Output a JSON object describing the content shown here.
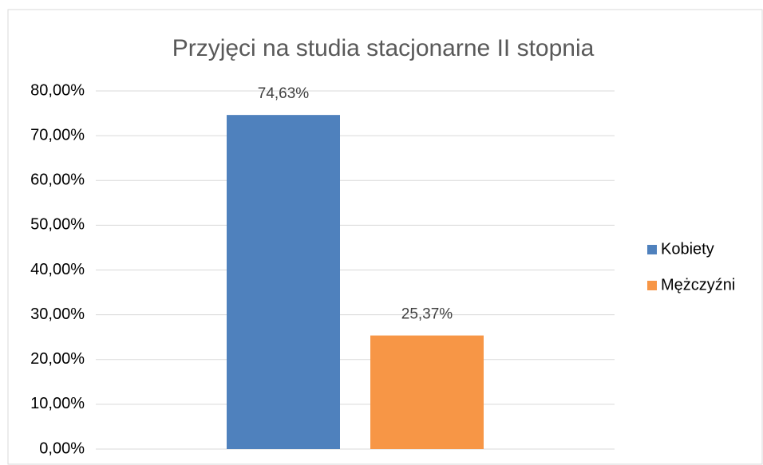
{
  "chart_data": {
    "type": "bar",
    "title": "Przyjęci na studia stacjonarne II stopnia",
    "categories": [
      null
    ],
    "series": [
      {
        "name": "Kobiety",
        "color": "#4f81bd",
        "values": [
          74.63
        ],
        "value_labels": [
          "74,63%"
        ]
      },
      {
        "name": "Mężczyźni",
        "color": "#f79646",
        "values": [
          25.37
        ],
        "value_labels": [
          "25,37%"
        ]
      }
    ],
    "ylim": [
      0,
      80
    ],
    "yticks": [
      {
        "value": 0,
        "label": "0,00%"
      },
      {
        "value": 10,
        "label": "10,00%"
      },
      {
        "value": 20,
        "label": "20,00%"
      },
      {
        "value": 30,
        "label": "30,00%"
      },
      {
        "value": 40,
        "label": "40,00%"
      },
      {
        "value": 50,
        "label": "50,00%"
      },
      {
        "value": 60,
        "label": "60,00%"
      },
      {
        "value": 70,
        "label": "70,00%"
      },
      {
        "value": 80,
        "label": "80,00%"
      }
    ],
    "grid": true,
    "legend": "right"
  }
}
